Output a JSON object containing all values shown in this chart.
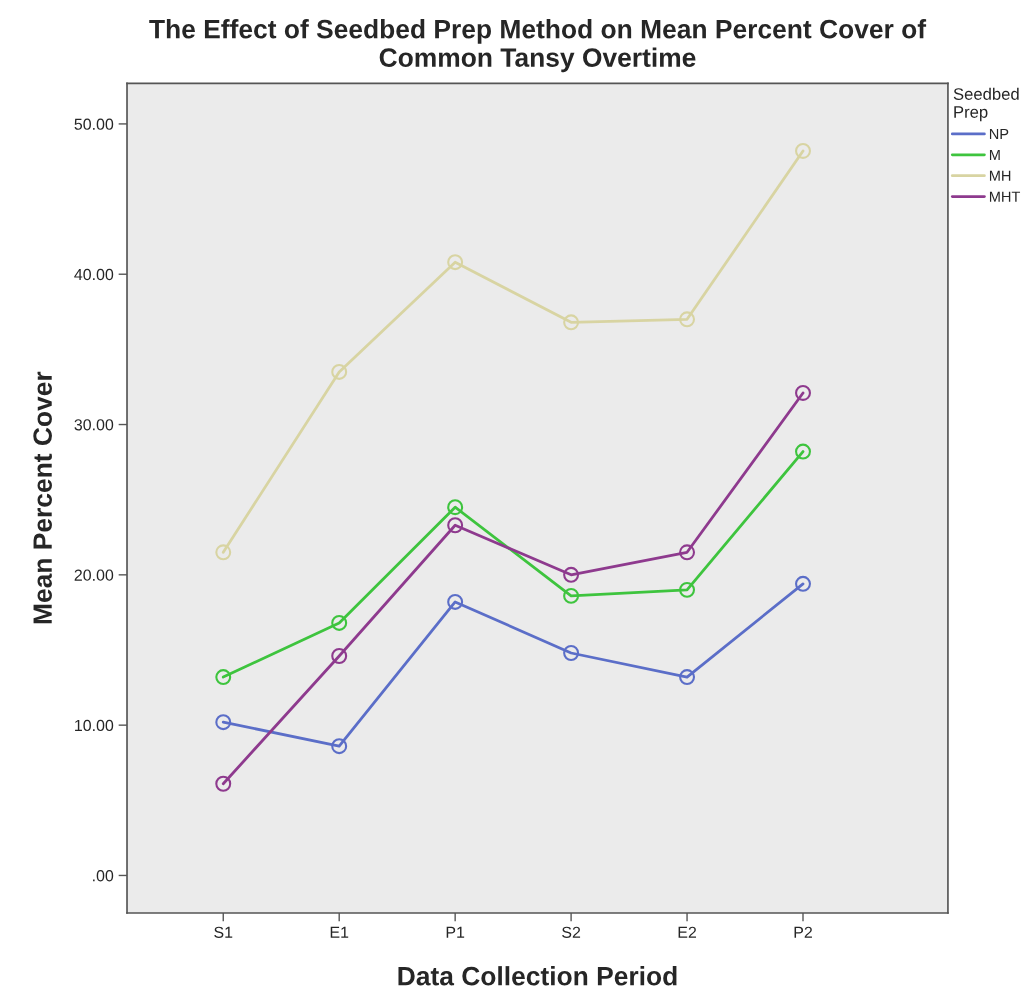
{
  "chart_data": {
    "type": "line",
    "title": "The Effect of Seedbed Prep Method on Mean Percent Cover of\nCommon Tansy Overtime",
    "xlabel": "Data Collection Period",
    "ylabel": "Mean Percent Cover",
    "legend_title": "Seedbed\nPrep",
    "categories": [
      "S1",
      "E1",
      "P1",
      "S2",
      "E2",
      "P2"
    ],
    "series": [
      {
        "name": "NP",
        "color": "#5b6ec8",
        "values": [
          10.2,
          8.6,
          18.2,
          14.8,
          13.2,
          19.4
        ]
      },
      {
        "name": "M",
        "color": "#3ec43e",
        "values": [
          13.2,
          16.8,
          24.5,
          18.6,
          19.0,
          28.2
        ]
      },
      {
        "name": "MH",
        "color": "#d8d4a2",
        "values": [
          21.5,
          33.5,
          40.8,
          36.8,
          37.0,
          48.2
        ]
      },
      {
        "name": "MHT",
        "color": "#8e3a8e",
        "values": [
          6.1,
          14.6,
          23.3,
          20.0,
          21.5,
          32.1
        ]
      }
    ],
    "ylim": [
      -2.5,
      52.7
    ],
    "yticks": [
      {
        "value": 0,
        "label": ".00"
      },
      {
        "value": 10,
        "label": "10.00"
      },
      {
        "value": 20,
        "label": "20.00"
      },
      {
        "value": 30,
        "label": "30.00"
      },
      {
        "value": 40,
        "label": "40.00"
      },
      {
        "value": 50,
        "label": "50.00"
      }
    ],
    "marker": "circle",
    "line_style": "solid",
    "grid": false,
    "legend": "right"
  }
}
